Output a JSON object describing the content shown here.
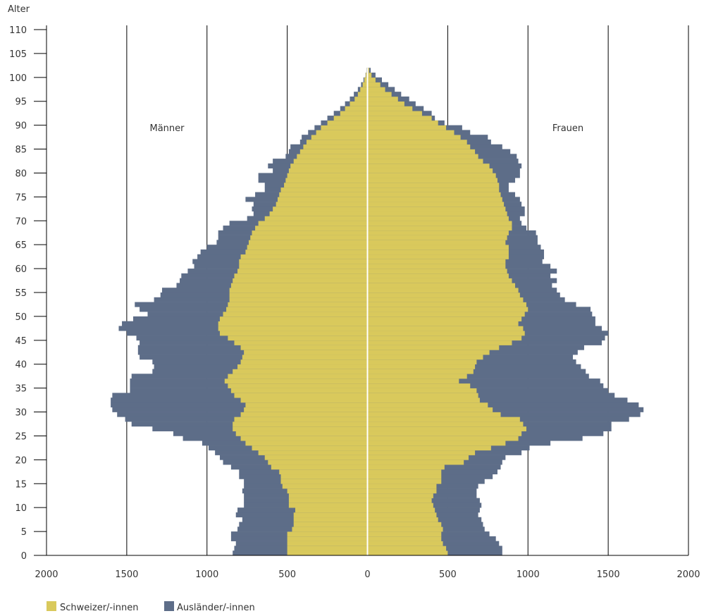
{
  "chart_data": {
    "type": "bar",
    "orientation": "horizontal-pyramid",
    "ylabel": "Alter",
    "left_label": "Männer",
    "right_label": "Frauen",
    "xlim": [
      -2000,
      2000
    ],
    "ylim": [
      0,
      110
    ],
    "x_ticks": [
      "2000",
      "1500",
      "1000",
      "500",
      "0",
      "500",
      "1000",
      "1500",
      "2000"
    ],
    "y_ticks": [
      "0",
      "5",
      "10",
      "15",
      "20",
      "25",
      "30",
      "35",
      "40",
      "45",
      "50",
      "55",
      "60",
      "65",
      "70",
      "75",
      "80",
      "85",
      "90",
      "95",
      "100",
      "105",
      "110"
    ],
    "grid": "vertical",
    "legend_position": "bottom-left",
    "colors": {
      "swiss": "#d9c95c",
      "foreign": "#5d6d88",
      "axis": "#000000",
      "center": "#ffffff"
    },
    "series": [
      {
        "name": "Schweizer/-innen"
      },
      {
        "name": "Ausländer/-innen"
      }
    ],
    "ages": [
      0,
      1,
      2,
      3,
      4,
      5,
      6,
      7,
      8,
      9,
      10,
      11,
      12,
      13,
      14,
      15,
      16,
      17,
      18,
      19,
      20,
      21,
      22,
      23,
      24,
      25,
      26,
      27,
      28,
      29,
      30,
      31,
      32,
      33,
      34,
      35,
      36,
      37,
      38,
      39,
      40,
      41,
      42,
      43,
      44,
      45,
      46,
      47,
      48,
      49,
      50,
      51,
      52,
      53,
      54,
      55,
      56,
      57,
      58,
      59,
      60,
      61,
      62,
      63,
      64,
      65,
      66,
      67,
      68,
      69,
      70,
      71,
      72,
      73,
      74,
      75,
      76,
      77,
      78,
      79,
      80,
      81,
      82,
      83,
      84,
      85,
      86,
      87,
      88,
      89,
      90,
      91,
      92,
      93,
      94,
      95,
      96,
      97,
      98,
      99,
      100,
      101
    ],
    "male_swiss": [
      500,
      500,
      500,
      500,
      500,
      470,
      460,
      460,
      460,
      450,
      490,
      490,
      490,
      500,
      530,
      540,
      540,
      550,
      600,
      620,
      640,
      680,
      720,
      760,
      790,
      820,
      840,
      840,
      830,
      790,
      770,
      760,
      790,
      830,
      850,
      870,
      890,
      870,
      840,
      810,
      790,
      780,
      770,
      790,
      830,
      870,
      920,
      930,
      930,
      920,
      900,
      880,
      870,
      860,
      860,
      860,
      850,
      840,
      830,
      810,
      800,
      800,
      790,
      760,
      750,
      740,
      730,
      720,
      700,
      680,
      640,
      610,
      590,
      570,
      560,
      550,
      540,
      520,
      510,
      500,
      490,
      480,
      460,
      440,
      420,
      400,
      380,
      350,
      320,
      290,
      250,
      210,
      170,
      140,
      110,
      80,
      60,
      45,
      30,
      20,
      10,
      5
    ],
    "male_total": [
      840,
      830,
      820,
      850,
      850,
      810,
      800,
      780,
      820,
      810,
      770,
      770,
      770,
      780,
      770,
      770,
      800,
      800,
      850,
      900,
      920,
      950,
      990,
      1030,
      1150,
      1210,
      1340,
      1470,
      1510,
      1560,
      1590,
      1600,
      1600,
      1590,
      1480,
      1480,
      1480,
      1470,
      1340,
      1330,
      1340,
      1420,
      1430,
      1430,
      1420,
      1440,
      1500,
      1550,
      1530,
      1460,
      1370,
      1420,
      1450,
      1330,
      1290,
      1280,
      1190,
      1170,
      1160,
      1120,
      1080,
      1090,
      1060,
      1040,
      1000,
      940,
      930,
      930,
      900,
      860,
      750,
      710,
      720,
      710,
      760,
      700,
      640,
      640,
      680,
      680,
      590,
      620,
      590,
      510,
      490,
      480,
      420,
      410,
      370,
      330,
      290,
      250,
      210,
      170,
      140,
      110,
      85,
      60,
      40,
      25,
      12,
      6
    ],
    "female_swiss": [
      500,
      490,
      470,
      460,
      460,
      470,
      460,
      440,
      430,
      420,
      410,
      400,
      410,
      430,
      430,
      460,
      460,
      460,
      480,
      600,
      630,
      670,
      770,
      860,
      940,
      960,
      990,
      970,
      950,
      830,
      780,
      750,
      700,
      690,
      680,
      640,
      570,
      620,
      660,
      670,
      680,
      720,
      760,
      820,
      900,
      960,
      980,
      970,
      940,
      960,
      980,
      1000,
      990,
      970,
      950,
      940,
      920,
      900,
      880,
      870,
      860,
      860,
      880,
      880,
      880,
      860,
      870,
      880,
      900,
      900,
      880,
      870,
      860,
      850,
      840,
      830,
      820,
      820,
      810,
      800,
      780,
      760,
      720,
      690,
      670,
      640,
      620,
      580,
      540,
      490,
      440,
      400,
      340,
      280,
      230,
      190,
      150,
      110,
      80,
      50,
      25,
      10
    ],
    "female_total": [
      840,
      840,
      820,
      800,
      760,
      730,
      720,
      710,
      690,
      700,
      710,
      700,
      680,
      680,
      690,
      730,
      780,
      810,
      830,
      840,
      860,
      960,
      1010,
      1140,
      1340,
      1470,
      1520,
      1520,
      1630,
      1700,
      1720,
      1690,
      1620,
      1540,
      1500,
      1470,
      1450,
      1380,
      1360,
      1330,
      1300,
      1280,
      1310,
      1350,
      1460,
      1480,
      1500,
      1460,
      1420,
      1420,
      1400,
      1390,
      1300,
      1230,
      1200,
      1180,
      1150,
      1180,
      1140,
      1180,
      1140,
      1090,
      1100,
      1100,
      1080,
      1060,
      1060,
      1050,
      990,
      960,
      950,
      980,
      980,
      960,
      950,
      920,
      880,
      880,
      920,
      950,
      950,
      960,
      940,
      930,
      890,
      840,
      770,
      750,
      640,
      590,
      480,
      420,
      400,
      350,
      300,
      260,
      210,
      170,
      130,
      90,
      50,
      20
    ]
  },
  "legend": {
    "items": [
      {
        "label": "Schweizer/-innen",
        "color": "#d9c95c"
      },
      {
        "label": "Ausländer/-innen",
        "color": "#5d6d88"
      }
    ]
  }
}
